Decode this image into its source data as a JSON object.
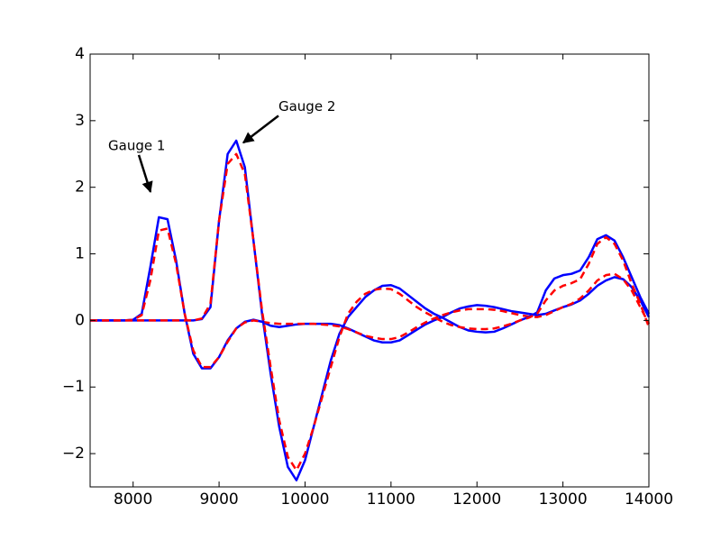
{
  "chart_data": {
    "type": "line",
    "x": [
      7500,
      7600,
      7700,
      7800,
      7900,
      8000,
      8100,
      8200,
      8300,
      8400,
      8500,
      8600,
      8700,
      8800,
      8900,
      9000,
      9100,
      9200,
      9300,
      9400,
      9500,
      9600,
      9700,
      9800,
      9900,
      10000,
      10100,
      10200,
      10300,
      10400,
      10500,
      10600,
      10700,
      10800,
      10900,
      11000,
      11100,
      11200,
      11300,
      11400,
      11500,
      11600,
      11700,
      11800,
      11900,
      12000,
      12100,
      12200,
      12300,
      12400,
      12500,
      12600,
      12700,
      12800,
      12900,
      13000,
      13100,
      13200,
      13300,
      13400,
      13500,
      13600,
      13700,
      13800,
      13900,
      14000
    ],
    "series": [
      {
        "color": "#0000ff",
        "dashed": false,
        "values": [
          0,
          0,
          0,
          0,
          0,
          0.01,
          0.1,
          0.8,
          1.55,
          1.52,
          0.9,
          0.1,
          -0.5,
          -0.72,
          -0.72,
          -0.55,
          -0.3,
          -0.12,
          -0.02,
          0.01,
          -0.02,
          -0.08,
          -0.1,
          -0.08,
          -0.06,
          -0.05,
          -0.05,
          -0.05,
          -0.05,
          -0.07,
          -0.12,
          -0.18,
          -0.24,
          -0.3,
          -0.33,
          -0.33,
          -0.3,
          -0.22,
          -0.14,
          -0.06,
          0,
          0.05,
          0.12,
          0.18,
          0.21,
          0.23,
          0.22,
          0.2,
          0.17,
          0.14,
          0.12,
          0.1,
          0.08,
          0.1,
          0.15,
          0.2,
          0.24,
          0.3,
          0.4,
          0.52,
          0.6,
          0.65,
          0.62,
          0.5,
          0.3,
          0.05
        ]
      },
      {
        "color": "#ff0000",
        "dashed": true,
        "values": [
          0,
          0,
          0,
          0,
          0,
          0.01,
          0.08,
          0.6,
          1.35,
          1.38,
          0.85,
          0.1,
          -0.45,
          -0.7,
          -0.7,
          -0.55,
          -0.32,
          -0.12,
          -0.03,
          0,
          -0.02,
          -0.04,
          -0.05,
          -0.05,
          -0.05,
          -0.05,
          -0.05,
          -0.06,
          -0.07,
          -0.09,
          -0.13,
          -0.18,
          -0.23,
          -0.26,
          -0.28,
          -0.28,
          -0.25,
          -0.18,
          -0.1,
          -0.03,
          0.03,
          0.08,
          0.12,
          0.15,
          0.17,
          0.17,
          0.17,
          0.16,
          0.14,
          0.11,
          0.08,
          0.06,
          0.05,
          0.08,
          0.14,
          0.2,
          0.25,
          0.33,
          0.45,
          0.6,
          0.68,
          0.7,
          0.62,
          0.45,
          0.2,
          -0.05
        ]
      },
      {
        "color": "#0000ff",
        "dashed": false,
        "values": [
          0,
          0,
          0,
          0,
          0,
          0,
          0,
          0,
          0,
          0,
          0,
          0,
          0,
          0.02,
          0.2,
          1.5,
          2.5,
          2.7,
          2.3,
          1.2,
          0.1,
          -0.8,
          -1.6,
          -2.2,
          -2.4,
          -2.1,
          -1.6,
          -1.1,
          -0.6,
          -0.2,
          0.05,
          0.2,
          0.35,
          0.45,
          0.52,
          0.53,
          0.48,
          0.38,
          0.28,
          0.18,
          0.1,
          0.04,
          -0.03,
          -0.1,
          -0.15,
          -0.17,
          -0.18,
          -0.17,
          -0.12,
          -0.06,
          0,
          0.05,
          0.12,
          0.45,
          0.63,
          0.68,
          0.7,
          0.75,
          0.95,
          1.22,
          1.28,
          1.2,
          0.95,
          0.65,
          0.35,
          0.1
        ]
      },
      {
        "color": "#ff0000",
        "dashed": true,
        "values": [
          0,
          0,
          0,
          0,
          0,
          0,
          0,
          0,
          0,
          0,
          0,
          0,
          0,
          0.03,
          0.25,
          1.5,
          2.35,
          2.5,
          2.2,
          1.2,
          0.15,
          -0.7,
          -1.5,
          -2.05,
          -2.25,
          -2,
          -1.6,
          -1.15,
          -0.7,
          -0.25,
          0.1,
          0.28,
          0.4,
          0.46,
          0.48,
          0.47,
          0.4,
          0.3,
          0.2,
          0.12,
          0.05,
          -0.02,
          -0.07,
          -0.1,
          -0.12,
          -0.13,
          -0.13,
          -0.12,
          -0.09,
          -0.05,
          0,
          0.04,
          0.1,
          0.3,
          0.45,
          0.52,
          0.56,
          0.62,
          0.85,
          1.15,
          1.25,
          1.15,
          0.9,
          0.55,
          0.25,
          -0.1
        ]
      }
    ],
    "xlim": [
      7500,
      14000
    ],
    "xticks": [
      8000,
      9000,
      10000,
      11000,
      12000,
      13000,
      14000
    ],
    "ylim": [
      -2.5,
      4
    ],
    "yticks": [
      {
        "value": -2,
        "label": "−2"
      },
      {
        "value": -1,
        "label": "−1"
      },
      0,
      1,
      2,
      3,
      4
    ],
    "grid": false,
    "annotations": [
      {
        "text": "Gauge 1",
        "xy": [
          8202,
          1.93
        ],
        "xytext": [
          7710,
          2.62
        ]
      },
      {
        "text": "Gauge 2",
        "xy": [
          9282,
          2.67
        ],
        "xytext": [
          9691,
          3.21
        ]
      }
    ]
  }
}
